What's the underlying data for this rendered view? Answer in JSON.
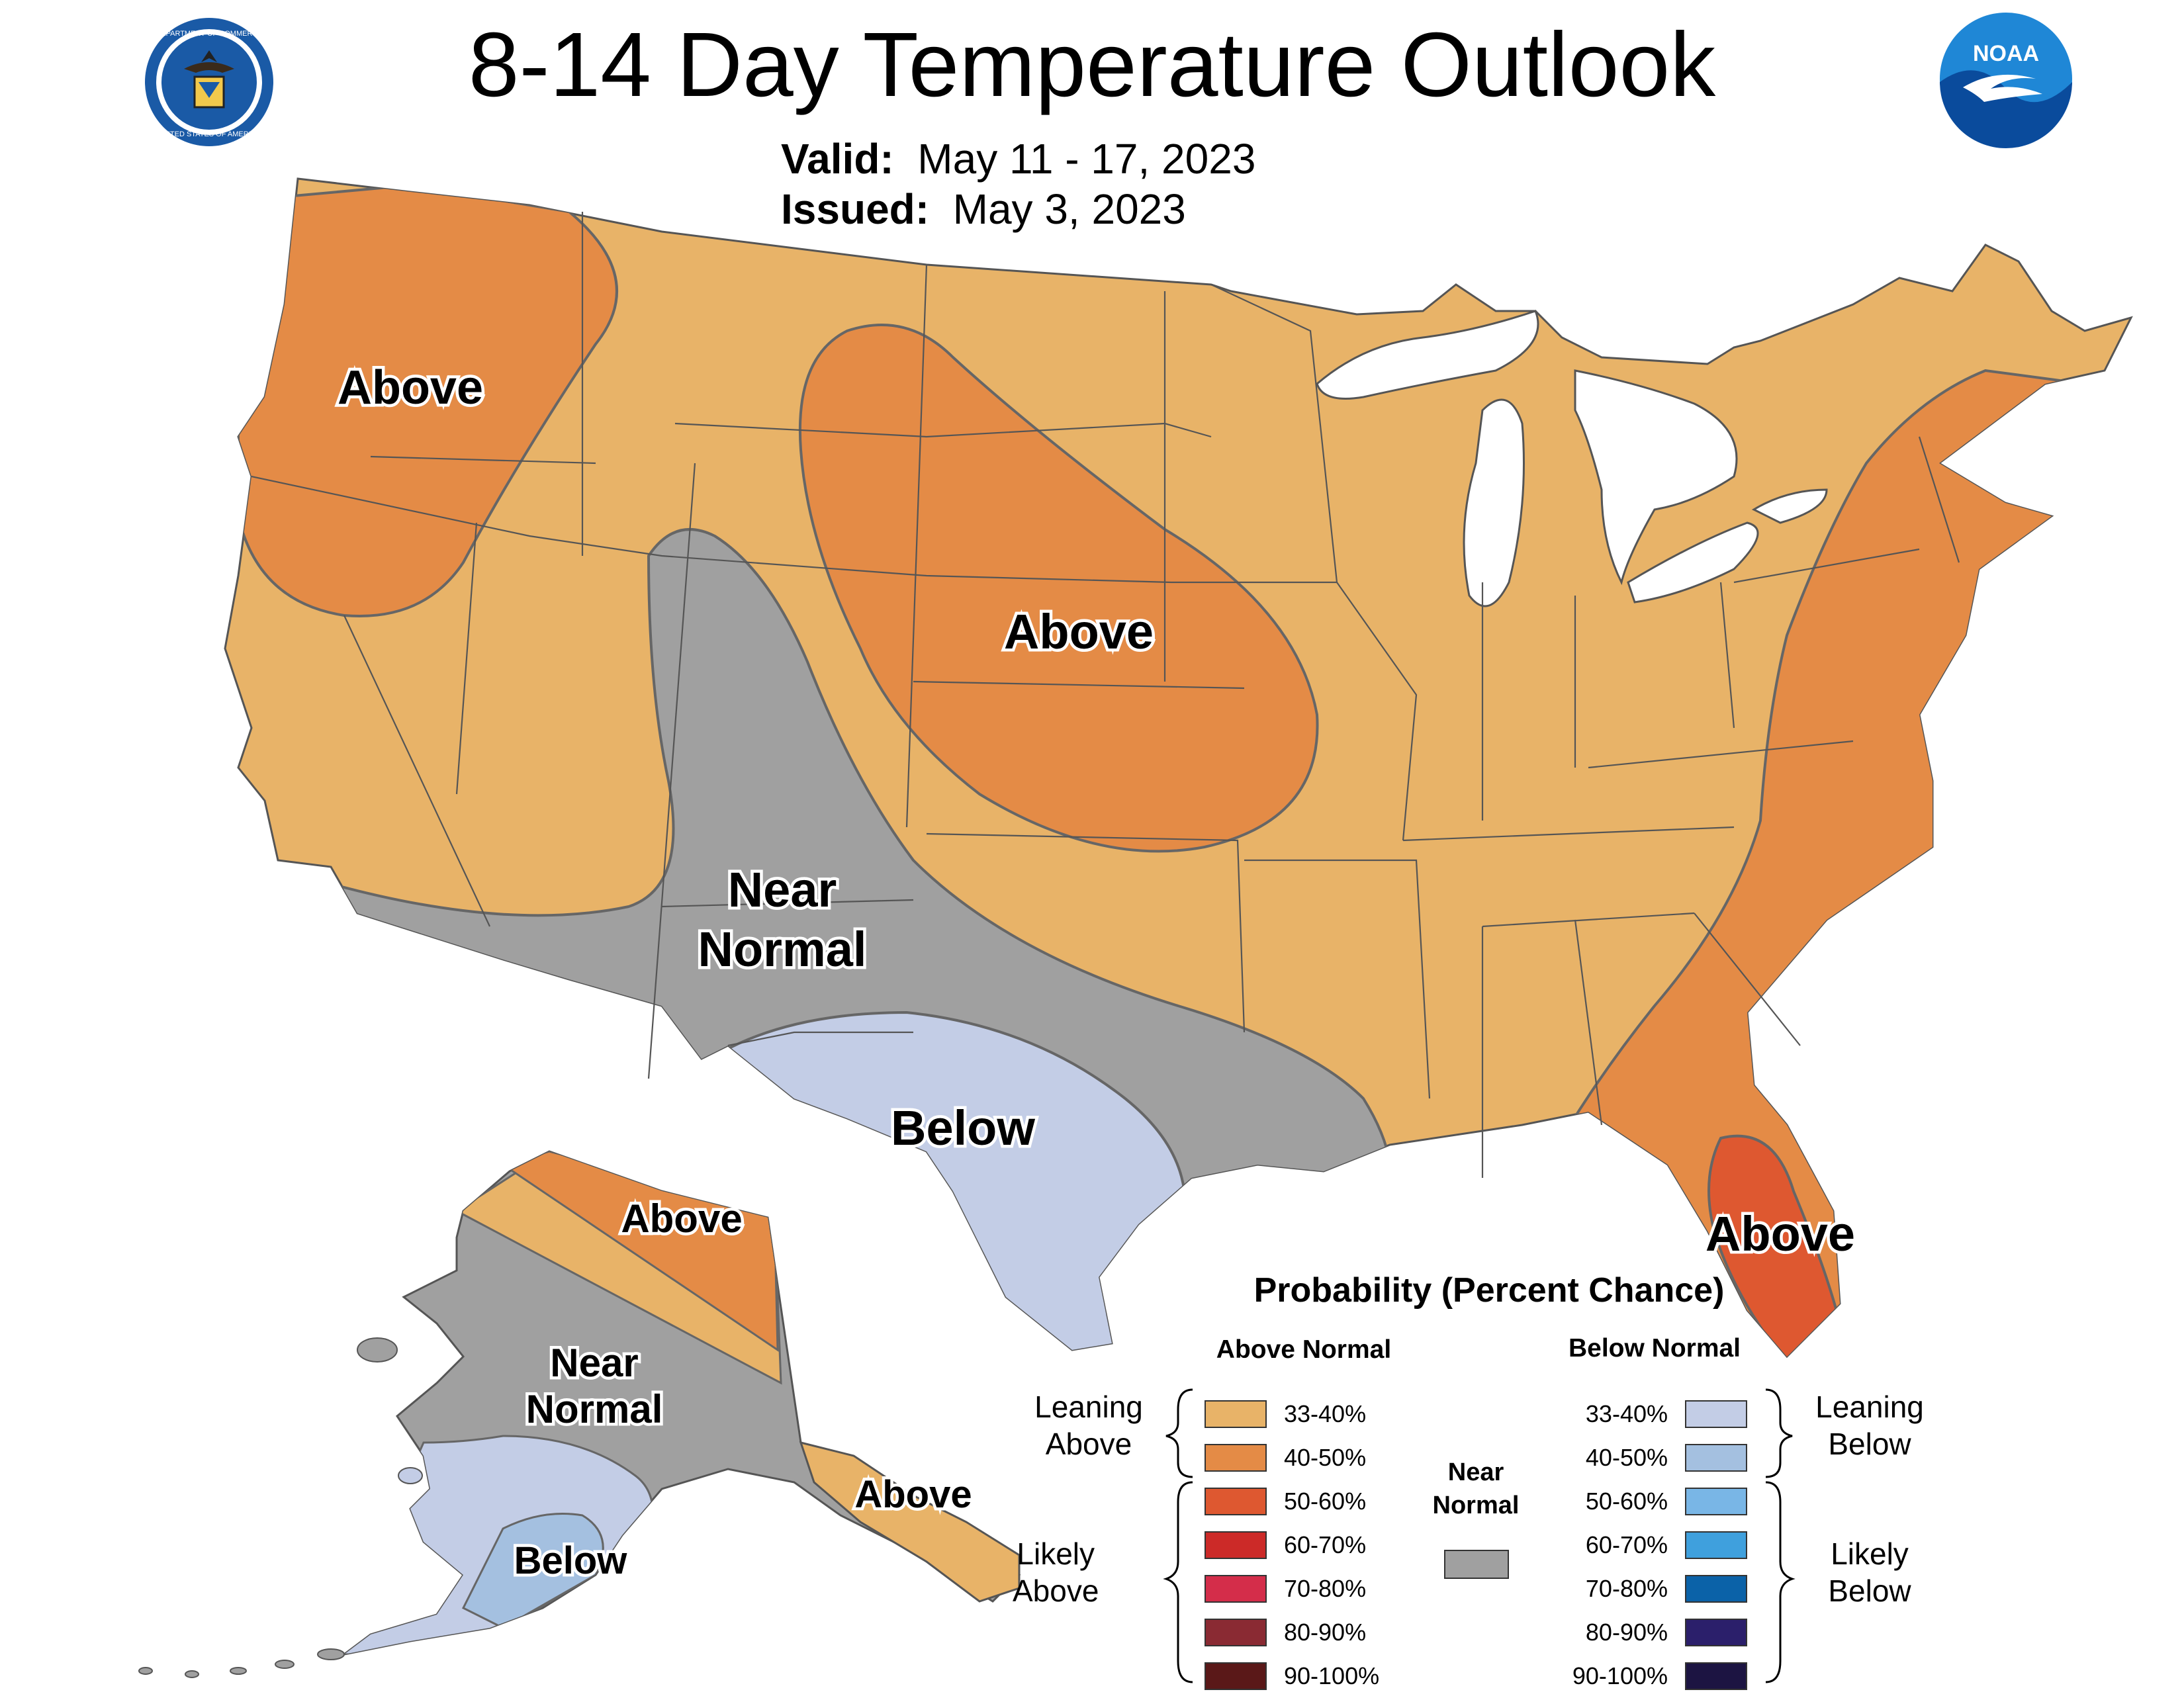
{
  "title": "8-14 Day Temperature Outlook",
  "valid_label": "Valid:",
  "valid_value": "May 11 - 17, 2023",
  "issued_label": "Issued:",
  "issued_value": "May 3, 2023",
  "logos": {
    "left": {
      "icon": "department-of-commerce-seal-icon",
      "text": "DEPARTMENT OF COMMERCE · UNITED STATES OF AMERICA"
    },
    "right": {
      "icon": "noaa-logo-icon",
      "text": "NOAA"
    }
  },
  "colors": {
    "above_33_40": "#e8b368",
    "above_40_50": "#e48b46",
    "above_50_60": "#de5830",
    "above_60_70": "#cc2a28",
    "above_70_80": "#d42d4a",
    "above_80_90": "#8a2a33",
    "above_90_100": "#5a1818",
    "near_normal": "#a0a0a0",
    "below_33_40": "#c3cde6",
    "below_40_50": "#a4c0e0",
    "below_50_60": "#79b6e6",
    "below_60_70": "#3fa0dd",
    "below_70_80": "#0b62a8",
    "below_80_90": "#2b1f6b",
    "below_90_100": "#1c1442",
    "border": "#555555",
    "water": "#ffffff"
  },
  "map_labels": {
    "nw": "Above",
    "central": "Above",
    "florida": "Above",
    "near_normal_l1": "Near",
    "near_normal_l2": "Normal",
    "texas": "Below",
    "ak_above": "Above",
    "ak_near_l1": "Near",
    "ak_near_l2": "Normal",
    "ak_below": "Below",
    "ak_panhandle": "Above"
  },
  "legend": {
    "title": "Probability (Percent Chance)",
    "above_header": "Above Normal",
    "below_header": "Below Normal",
    "above_rows": [
      "33-40%",
      "40-50%",
      "50-60%",
      "60-70%",
      "70-80%",
      "80-90%",
      "90-100%"
    ],
    "below_rows": [
      "33-40%",
      "40-50%",
      "50-60%",
      "60-70%",
      "70-80%",
      "80-90%",
      "90-100%"
    ],
    "leaning_above_l1": "Leaning",
    "leaning_above_l2": "Above",
    "likely_above_l1": "Likely",
    "likely_above_l2": "Above",
    "leaning_below_l1": "Leaning",
    "leaning_below_l2": "Below",
    "likely_below_l1": "Likely",
    "likely_below_l2": "Below",
    "near_normal_l1": "Near",
    "near_normal_l2": "Normal"
  }
}
